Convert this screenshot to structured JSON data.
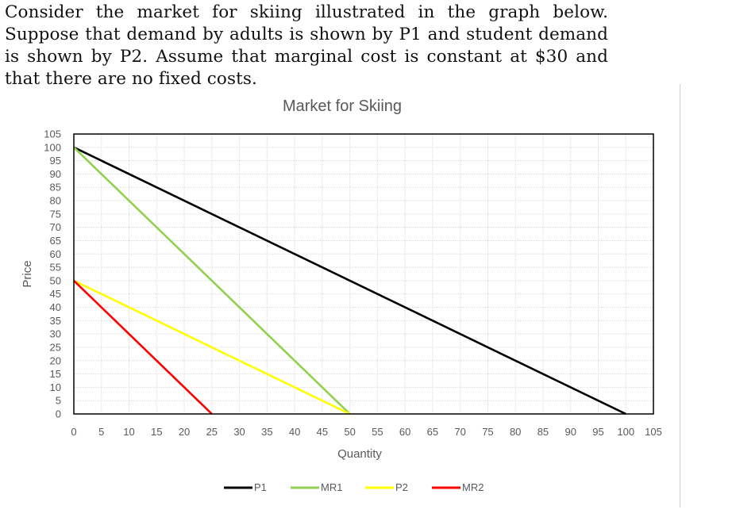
{
  "question": {
    "text": "Consider the market for skiing illustrated in the graph below. Suppose that demand by adults is shown by P1 and student demand is shown by P2. Assume that marginal cost is constant at $30 and that there are no fixed costs."
  },
  "chart_data": {
    "type": "line",
    "title": "Market for Skiing",
    "xlabel": "Quantity",
    "ylabel": "Price",
    "xlim": [
      0,
      105
    ],
    "ylim": [
      0,
      105
    ],
    "x_ticks": [
      0,
      5,
      10,
      15,
      20,
      25,
      30,
      35,
      40,
      45,
      50,
      55,
      60,
      65,
      70,
      75,
      80,
      85,
      90,
      95,
      100,
      105
    ],
    "y_ticks": [
      0,
      5,
      10,
      15,
      20,
      25,
      30,
      35,
      40,
      45,
      50,
      55,
      60,
      65,
      70,
      75,
      80,
      85,
      90,
      95,
      100,
      105
    ],
    "grid": true,
    "legend": "bottom",
    "series": [
      {
        "name": "P1",
        "color": "#000000",
        "points": [
          [
            0,
            100
          ],
          [
            100,
            0
          ]
        ]
      },
      {
        "name": "MR1",
        "color": "#92d050",
        "points": [
          [
            0,
            100
          ],
          [
            50,
            0
          ]
        ]
      },
      {
        "name": "P2",
        "color": "#ffff00",
        "points": [
          [
            0,
            50
          ],
          [
            50,
            0
          ]
        ]
      },
      {
        "name": "MR2",
        "color": "#ff0000",
        "points": [
          [
            0,
            50
          ],
          [
            25,
            0
          ]
        ]
      }
    ]
  }
}
